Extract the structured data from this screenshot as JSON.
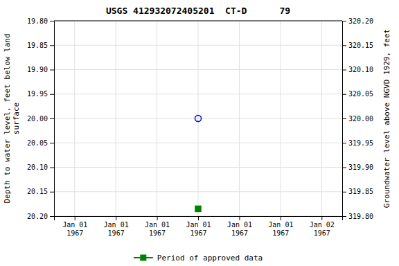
{
  "chart_data": {
    "type": "scatter",
    "title": "USGS 412932072405201  CT-D      79",
    "y_label": "Depth to water level, feet below land\nsurface",
    "y2_label": "Groundwater level above NGVD 1929, feet",
    "categories": [
      "Jan 01\n1967",
      "Jan 01\n1967",
      "Jan 01\n1967",
      "Jan 01\n1967",
      "Jan 01\n1967",
      "Jan 01\n1967",
      "Jan 02\n1967"
    ],
    "series": [
      {
        "color": "#0000cc",
        "marker": "circle-open",
        "values": [
          null,
          null,
          null,
          {
            "value": 20.0,
            "label": "20.00"
          },
          null,
          null,
          null
        ]
      },
      {
        "name": "Period of approved data",
        "color": "#008000",
        "marker": "square",
        "values": [
          null,
          null,
          null,
          20.185,
          null,
          null,
          null
        ]
      }
    ],
    "ylim": [
      20.2,
      19.8
    ],
    "yticks": [
      {
        "value": 19.8,
        "label": "19.80"
      },
      19.85,
      {
        "value": 19.9,
        "label": "19.90"
      },
      19.95,
      {
        "value": 20.0,
        "label": "20.00"
      },
      20.05,
      {
        "value": 20.1,
        "label": "20.10"
      },
      20.15,
      {
        "value": 20.2,
        "label": "20.20"
      }
    ],
    "y2lim": [
      319.8,
      320.2
    ],
    "y2ticks": [
      {
        "value": 319.8,
        "label": "319.80"
      },
      319.85,
      {
        "value": 319.9,
        "label": "319.90"
      },
      319.95,
      {
        "value": 320.0,
        "label": "320.00"
      },
      320.05,
      {
        "value": 320.1,
        "label": "320.10"
      },
      320.15,
      {
        "value": 320.2,
        "label": "320.20"
      }
    ],
    "grid": true,
    "legend": "bottom"
  }
}
